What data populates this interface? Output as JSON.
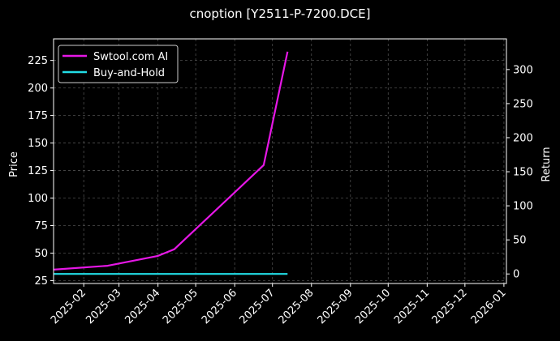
{
  "chart_data": {
    "type": "line",
    "title": "cnoption [Y2511-P-7200.DCE]",
    "ylabel": "Price",
    "y2label": "Return",
    "xlabel": "",
    "x_ticks": [
      "2025-02",
      "2025-03",
      "2025-04",
      "2025-05",
      "2025-06",
      "2025-07",
      "2025-08",
      "2025-09",
      "2025-10",
      "2025-11",
      "2025-12",
      "2026-01"
    ],
    "xlim": [
      "2025-01-08",
      "2026-01-03"
    ],
    "ylim": [
      22.4,
      244.6
    ],
    "y_ticks": [
      25,
      50,
      75,
      100,
      125,
      150,
      175,
      200,
      225
    ],
    "y2lim": [
      -14,
      345
    ],
    "y2_ticks": [
      0,
      50,
      100,
      150,
      200,
      250,
      300
    ],
    "grid": true,
    "legend_position": "top-left",
    "series": [
      {
        "name": "Swtool.com AI",
        "axis": "left",
        "color": "#e617e6",
        "x": [
          "2025-01-08",
          "2025-02-20",
          "2025-04-01",
          "2025-04-14",
          "2025-06-24",
          "2025-07-13"
        ],
        "values": [
          35,
          38.5,
          47.5,
          53.5,
          130,
          233
        ]
      },
      {
        "name": "Buy-and-Hold",
        "axis": "right",
        "color": "#22dde6",
        "x": [
          "2025-01-08",
          "2025-07-13"
        ],
        "values": [
          0,
          0
        ]
      }
    ]
  }
}
